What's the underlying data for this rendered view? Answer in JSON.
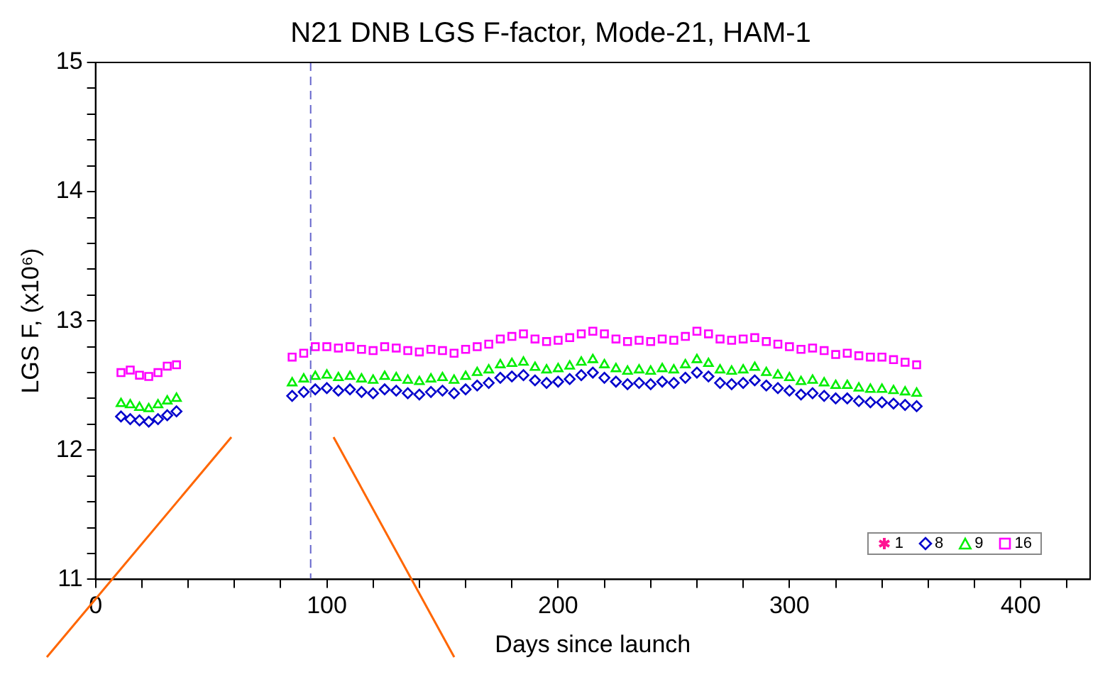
{
  "chart_data": {
    "type": "scatter",
    "title": "N21 DNB LGS F-factor, Mode-21, HAM-1",
    "xlabel": "Days since launch",
    "ylabel": "LGS F, (x10⁶)",
    "xlim": [
      0,
      430
    ],
    "ylim": [
      11,
      15
    ],
    "xticks": [
      0,
      {
        "value": 20,
        "label": null
      },
      {
        "value": 40,
        "label": null
      },
      {
        "value": 60,
        "label": null
      },
      {
        "value": 80,
        "label": null
      },
      100,
      {
        "value": 120,
        "label": null
      },
      {
        "value": 140,
        "label": null
      },
      {
        "value": 160,
        "label": null
      },
      {
        "value": 180,
        "label": null
      },
      200,
      {
        "value": 220,
        "label": null
      },
      {
        "value": 240,
        "label": null
      },
      {
        "value": 260,
        "label": null
      },
      {
        "value": 280,
        "label": null
      },
      300,
      {
        "value": 320,
        "label": null
      },
      {
        "value": 340,
        "label": null
      },
      {
        "value": 360,
        "label": null
      },
      {
        "value": 380,
        "label": null
      },
      400,
      {
        "value": 420,
        "label": null
      }
    ],
    "yticks": [
      11,
      {
        "value": 11.2,
        "label": null
      },
      {
        "value": 11.4,
        "label": null
      },
      {
        "value": 11.6,
        "label": null
      },
      {
        "value": 11.8,
        "label": null
      },
      12,
      {
        "value": 12.2,
        "label": null
      },
      {
        "value": 12.4,
        "label": null
      },
      {
        "value": 12.6,
        "label": null
      },
      {
        "value": 12.8,
        "label": null
      },
      13,
      {
        "value": 13.2,
        "label": null
      },
      {
        "value": 13.4,
        "label": null
      },
      {
        "value": 13.6,
        "label": null
      },
      {
        "value": 13.8,
        "label": null
      },
      14,
      {
        "value": 14.2,
        "label": null
      },
      {
        "value": 14.4,
        "label": null
      },
      {
        "value": 14.6,
        "label": null
      },
      {
        "value": 14.8,
        "label": null
      },
      15
    ],
    "grid": false,
    "legend": "bottom right",
    "ref_lines": [
      {
        "axis": "x",
        "value": 93,
        "color": "#6666cc",
        "line_style": "dashed"
      }
    ],
    "x": [
      11,
      15,
      19,
      23,
      27,
      31,
      35,
      85,
      90,
      95,
      100,
      105,
      110,
      115,
      120,
      125,
      130,
      135,
      140,
      145,
      150,
      155,
      160,
      165,
      170,
      175,
      180,
      185,
      190,
      195,
      200,
      205,
      210,
      215,
      220,
      225,
      230,
      235,
      240,
      245,
      250,
      255,
      260,
      265,
      270,
      275,
      280,
      285,
      290,
      295,
      300,
      305,
      310,
      315,
      320,
      325,
      330,
      335,
      340,
      345,
      350,
      355
    ],
    "series": [
      {
        "name": "1",
        "color": "#ff1493",
        "marker": "star",
        "values": [
          null,
          null,
          null,
          null,
          null,
          null,
          null,
          null,
          null,
          null,
          null,
          null,
          null,
          null,
          null,
          null,
          null,
          null,
          null,
          null,
          null,
          null,
          null,
          null,
          null,
          null,
          null,
          null,
          null,
          null,
          null,
          null,
          null,
          null,
          null,
          null,
          null,
          null,
          null,
          null,
          null,
          null,
          null,
          null,
          null,
          null,
          null,
          null,
          null,
          null,
          null,
          null,
          null,
          null,
          null,
          null,
          null,
          null,
          null,
          null,
          null,
          null
        ]
      },
      {
        "name": "8",
        "color": "#0000cc",
        "marker": "diamond",
        "values": [
          12.26,
          12.24,
          12.23,
          12.22,
          12.24,
          12.27,
          12.3,
          12.42,
          12.45,
          12.47,
          12.48,
          12.46,
          12.47,
          12.45,
          12.44,
          12.47,
          12.46,
          12.44,
          12.43,
          12.45,
          12.46,
          12.44,
          12.47,
          12.5,
          12.52,
          12.56,
          12.57,
          12.58,
          12.54,
          12.52,
          12.53,
          12.55,
          12.58,
          12.6,
          12.56,
          12.53,
          12.51,
          12.52,
          12.51,
          12.53,
          12.52,
          12.56,
          12.6,
          12.57,
          12.52,
          12.51,
          12.52,
          12.54,
          12.5,
          12.48,
          12.46,
          12.43,
          12.44,
          12.42,
          12.4,
          12.4,
          12.38,
          12.37,
          12.37,
          12.36,
          12.35,
          12.34
        ]
      },
      {
        "name": "9",
        "color": "#00ee00",
        "marker": "triangle",
        "values": [
          12.36,
          12.35,
          12.33,
          12.32,
          12.35,
          12.38,
          12.4,
          12.52,
          12.55,
          12.57,
          12.58,
          12.56,
          12.57,
          12.55,
          12.54,
          12.57,
          12.56,
          12.54,
          12.53,
          12.55,
          12.56,
          12.54,
          12.57,
          12.6,
          12.62,
          12.66,
          12.67,
          12.68,
          12.64,
          12.62,
          12.63,
          12.65,
          12.68,
          12.7,
          12.66,
          12.63,
          12.61,
          12.62,
          12.61,
          12.63,
          12.62,
          12.66,
          12.7,
          12.67,
          12.62,
          12.61,
          12.62,
          12.64,
          12.6,
          12.58,
          12.56,
          12.53,
          12.54,
          12.52,
          12.5,
          12.5,
          12.48,
          12.47,
          12.47,
          12.46,
          12.45,
          12.44
        ]
      },
      {
        "name": "16",
        "color": "#ff00ff",
        "marker": "square",
        "values": [
          12.6,
          12.62,
          12.58,
          12.57,
          12.6,
          12.65,
          12.66,
          12.72,
          12.75,
          12.8,
          12.8,
          12.79,
          12.8,
          12.78,
          12.77,
          12.8,
          12.79,
          12.77,
          12.76,
          12.78,
          12.77,
          12.75,
          12.78,
          12.8,
          12.82,
          12.86,
          12.88,
          12.9,
          12.86,
          12.84,
          12.85,
          12.87,
          12.9,
          12.92,
          12.9,
          12.86,
          12.84,
          12.85,
          12.84,
          12.86,
          12.85,
          12.88,
          12.92,
          12.9,
          12.86,
          12.85,
          12.86,
          12.87,
          12.84,
          12.82,
          12.8,
          12.78,
          12.79,
          12.77,
          12.74,
          12.75,
          12.73,
          12.72,
          12.72,
          12.7,
          12.68,
          12.66
        ]
      }
    ]
  }
}
